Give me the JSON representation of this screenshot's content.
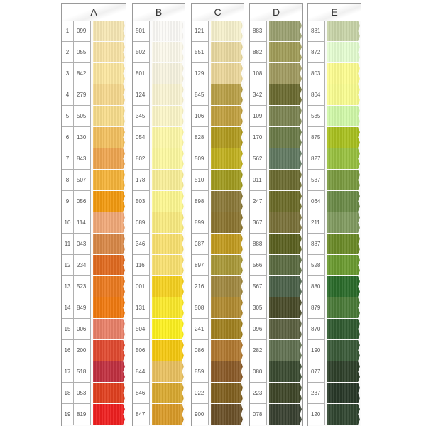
{
  "columns": [
    {
      "label": "A",
      "indexed": true,
      "items": [
        {
          "n": "1",
          "code": "099",
          "color": "#f6e7b4"
        },
        {
          "n": "2",
          "code": "055",
          "color": "#f8e3a6"
        },
        {
          "n": "3",
          "code": "842",
          "color": "#fbe6a0"
        },
        {
          "n": "4",
          "code": "279",
          "color": "#f5d88e"
        },
        {
          "n": "5",
          "code": "505",
          "color": "#f7dc8c"
        },
        {
          "n": "6",
          "code": "130",
          "color": "#f2c060"
        },
        {
          "n": "7",
          "code": "843",
          "color": "#eea550"
        },
        {
          "n": "8",
          "code": "507",
          "color": "#f4b33a"
        },
        {
          "n": "9",
          "code": "056",
          "color": "#f29a10"
        },
        {
          "n": "10",
          "code": "114",
          "color": "#f0a878"
        },
        {
          "n": "11",
          "code": "043",
          "color": "#d88848"
        },
        {
          "n": "12",
          "code": "234",
          "color": "#e06a20"
        },
        {
          "n": "13",
          "code": "523",
          "color": "#ea7a20"
        },
        {
          "n": "14",
          "code": "849",
          "color": "#f07a10"
        },
        {
          "n": "15",
          "code": "006",
          "color": "#e88068"
        },
        {
          "n": "16",
          "code": "200",
          "color": "#e04a30"
        },
        {
          "n": "17",
          "code": "518",
          "color": "#c03040"
        },
        {
          "n": "18",
          "code": "053",
          "color": "#e04020"
        },
        {
          "n": "19",
          "code": "819",
          "color": "#ee2020"
        }
      ]
    },
    {
      "label": "B",
      "indexed": false,
      "items": [
        {
          "code": "501",
          "color": "#fbfaf6"
        },
        {
          "code": "502",
          "color": "#fbf8ea"
        },
        {
          "code": "801",
          "color": "#f7f3e0"
        },
        {
          "code": "124",
          "color": "#f9f3d2"
        },
        {
          "code": "345",
          "color": "#fbf5c8"
        },
        {
          "code": "054",
          "color": "#fdf8a8"
        },
        {
          "code": "802",
          "color": "#fcf8a0"
        },
        {
          "code": "178",
          "color": "#f8ee98"
        },
        {
          "code": "503",
          "color": "#fcf690"
        },
        {
          "code": "089",
          "color": "#f8ea80"
        },
        {
          "code": "346",
          "color": "#f8e070"
        },
        {
          "code": "116",
          "color": "#f8e070"
        },
        {
          "code": "001",
          "color": "#f4d020"
        },
        {
          "code": "131",
          "color": "#fae82a"
        },
        {
          "code": "504",
          "color": "#fcf020"
        },
        {
          "code": "506",
          "color": "#f4c810"
        },
        {
          "code": "844",
          "color": "#e8c060"
        },
        {
          "code": "846",
          "color": "#d8a830"
        },
        {
          "code": "847",
          "color": "#d89a28"
        }
      ]
    },
    {
      "label": "C",
      "indexed": false,
      "items": [
        {
          "code": "121",
          "color": "#f5f0cc"
        },
        {
          "code": "551",
          "color": "#e8d8a0"
        },
        {
          "code": "129",
          "color": "#ead69a"
        },
        {
          "code": "845",
          "color": "#b8a048"
        },
        {
          "code": "106",
          "color": "#c0a040"
        },
        {
          "code": "828",
          "color": "#b09a20"
        },
        {
          "code": "509",
          "color": "#c0b020"
        },
        {
          "code": "510",
          "color": "#a09a20"
        },
        {
          "code": "898",
          "color": "#8a7838"
        },
        {
          "code": "899",
          "color": "#8a7430"
        },
        {
          "code": "087",
          "color": "#c09a20"
        },
        {
          "code": "897",
          "color": "#a89838"
        },
        {
          "code": "216",
          "color": "#a08840"
        },
        {
          "code": "508",
          "color": "#b08a30"
        },
        {
          "code": "241",
          "color": "#a08020"
        },
        {
          "code": "086",
          "color": "#b07830"
        },
        {
          "code": "859",
          "color": "#8a5a28"
        },
        {
          "code": "022",
          "color": "#806020"
        },
        {
          "code": "900",
          "color": "#6a5028"
        }
      ]
    },
    {
      "label": "D",
      "indexed": false,
      "items": [
        {
          "code": "883",
          "color": "#9aa070"
        },
        {
          "code": "882",
          "color": "#a09c58"
        },
        {
          "code": "108",
          "color": "#a09a60"
        },
        {
          "code": "342",
          "color": "#6a6a30"
        },
        {
          "code": "109",
          "color": "#7a8250"
        },
        {
          "code": "170",
          "color": "#6a7a48"
        },
        {
          "code": "562",
          "color": "#607860"
        },
        {
          "code": "011",
          "color": "#6a6a30"
        },
        {
          "code": "247",
          "color": "#6a6a28"
        },
        {
          "code": "367",
          "color": "#787038"
        },
        {
          "code": "888",
          "color": "#5a6020"
        },
        {
          "code": "566",
          "color": "#5a6a40"
        },
        {
          "code": "567",
          "color": "#4a6048"
        },
        {
          "code": "305",
          "color": "#484a28"
        },
        {
          "code": "096",
          "color": "#5a6040"
        },
        {
          "code": "282",
          "color": "#607050"
        },
        {
          "code": "080",
          "color": "#3a4a30"
        },
        {
          "code": "223",
          "color": "#3e4628"
        },
        {
          "code": "078",
          "color": "#384030"
        }
      ]
    },
    {
      "label": "E",
      "indexed": false,
      "items": [
        {
          "code": "881",
          "color": "#c8d4a8"
        },
        {
          "code": "872",
          "color": "#e4fcd0"
        },
        {
          "code": "803",
          "color": "#fcfc90"
        },
        {
          "code": "804",
          "color": "#f8fc90"
        },
        {
          "code": "535",
          "color": "#d0f8a8"
        },
        {
          "code": "875",
          "color": "#a8c020"
        },
        {
          "code": "827",
          "color": "#98c040"
        },
        {
          "code": "537",
          "color": "#7a9a40"
        },
        {
          "code": "064",
          "color": "#6a8a48"
        },
        {
          "code": "211",
          "color": "#809a60"
        },
        {
          "code": "887",
          "color": "#6a8a28"
        },
        {
          "code": "528",
          "color": "#6a9a30"
        },
        {
          "code": "880",
          "color": "#2a6a2a"
        },
        {
          "code": "879",
          "color": "#4a7a38"
        },
        {
          "code": "870",
          "color": "#305a30"
        },
        {
          "code": "190",
          "color": "#3a5a38"
        },
        {
          "code": "077",
          "color": "#2e402a"
        },
        {
          "code": "237",
          "color": "#283828"
        },
        {
          "code": "120",
          "color": "#304530"
        }
      ]
    }
  ]
}
